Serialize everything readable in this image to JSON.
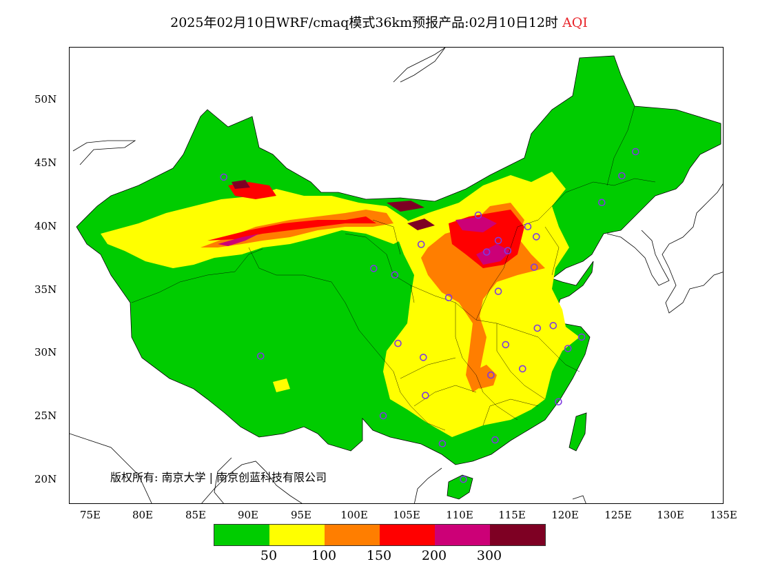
{
  "title": {
    "main": "2025年02月10日WRF/cmaq模式36km预报产品:02月10日12时",
    "variable": "AQI"
  },
  "map": {
    "lat_labels": [
      "50N",
      "45N",
      "40N",
      "35N",
      "30N",
      "25N",
      "20N"
    ],
    "lat_values": [
      50,
      45,
      40,
      35,
      30,
      25,
      20
    ],
    "lon_labels": [
      "75E",
      "80E",
      "85E",
      "90E",
      "95E",
      "100E",
      "105E",
      "110E",
      "115E",
      "120E",
      "125E",
      "130E",
      "135E"
    ],
    "lon_values": [
      75,
      80,
      85,
      90,
      95,
      100,
      105,
      110,
      115,
      120,
      125,
      130,
      135
    ],
    "extent": {
      "lon_min": 73,
      "lon_max": 135,
      "lat_min": 18,
      "lat_max": 54
    },
    "copyright": "版权所有: 南京大学 | 南京创蓝科技有限公司",
    "station_marker_color": "#7e3ae0",
    "stations": [
      [
        87.6,
        43.8
      ],
      [
        101.8,
        36.6
      ],
      [
        103.8,
        36.1
      ],
      [
        106.3,
        38.5
      ],
      [
        111.7,
        40.8
      ],
      [
        112.5,
        37.9
      ],
      [
        114.5,
        38.0
      ],
      [
        116.4,
        39.9
      ],
      [
        117.2,
        39.1
      ],
      [
        113.6,
        34.8
      ],
      [
        117.0,
        36.7
      ],
      [
        112.9,
        28.2
      ],
      [
        114.3,
        30.6
      ],
      [
        115.9,
        28.7
      ],
      [
        117.3,
        31.9
      ],
      [
        118.8,
        32.1
      ],
      [
        120.2,
        30.3
      ],
      [
        121.5,
        31.2
      ],
      [
        119.3,
        26.1
      ],
      [
        113.3,
        23.1
      ],
      [
        110.3,
        20.0
      ],
      [
        108.3,
        22.8
      ],
      [
        106.7,
        26.6
      ],
      [
        102.7,
        25.0
      ],
      [
        104.1,
        30.7
      ],
      [
        106.5,
        29.6
      ],
      [
        108.9,
        34.3
      ],
      [
        91.1,
        29.7
      ],
      [
        123.4,
        41.8
      ],
      [
        125.3,
        43.9
      ],
      [
        126.6,
        45.8
      ],
      [
        113.6,
        38.8
      ]
    ]
  },
  "legend": {
    "colors": [
      "#00cc00",
      "#ffff00",
      "#ff7e00",
      "#ff0000",
      "#cc0077",
      "#7e0023"
    ],
    "ticks": [
      "50",
      "100",
      "150",
      "200",
      "300"
    ]
  },
  "region_colors": {
    "good": "#00cc00",
    "moderate": "#ffff00",
    "sensitive": "#ff7e00",
    "unhealthy": "#ff0000",
    "very_unhealthy": "#cc0077",
    "hazardous": "#7e0023"
  }
}
